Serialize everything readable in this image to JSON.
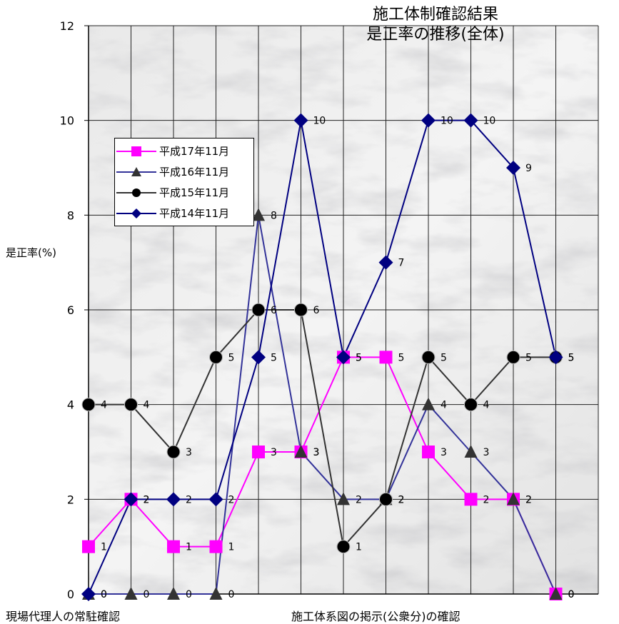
{
  "chart_data": {
    "type": "line",
    "title_line1": "施工体制確認結果",
    "title_line2": "是正率の推移(全体)",
    "ylabel": "是正率(%)",
    "xlabel_left": "現場代理人の常駐確認",
    "xlabel_right": "施工体系図の掲示(公衆分)の確認",
    "ylim": [
      0,
      12
    ],
    "yticks": [
      0,
      2,
      4,
      6,
      8,
      10,
      12
    ],
    "grid": true,
    "legend_position": "upper-left",
    "series": [
      {
        "name": "平成17年11月",
        "marker": "square",
        "color": "#ff00ff",
        "values": [
          1,
          2,
          1,
          1,
          3,
          3,
          5,
          5,
          3,
          2,
          2,
          0
        ]
      },
      {
        "name": "平成16年11月",
        "marker": "triangle",
        "color": "#333399",
        "values": [
          0,
          0,
          0,
          0,
          8,
          3,
          2,
          2,
          4,
          3,
          2,
          0
        ]
      },
      {
        "name": "平成15年11月",
        "marker": "circle",
        "color": "#333333",
        "values": [
          4,
          4,
          3,
          5,
          6,
          6,
          1,
          2,
          5,
          4,
          5,
          5
        ]
      },
      {
        "name": "平成14年11月",
        "marker": "diamond",
        "color": "#000080",
        "values": [
          0,
          2,
          2,
          2,
          5,
          10,
          5,
          7,
          10,
          10,
          9,
          5
        ]
      }
    ]
  }
}
